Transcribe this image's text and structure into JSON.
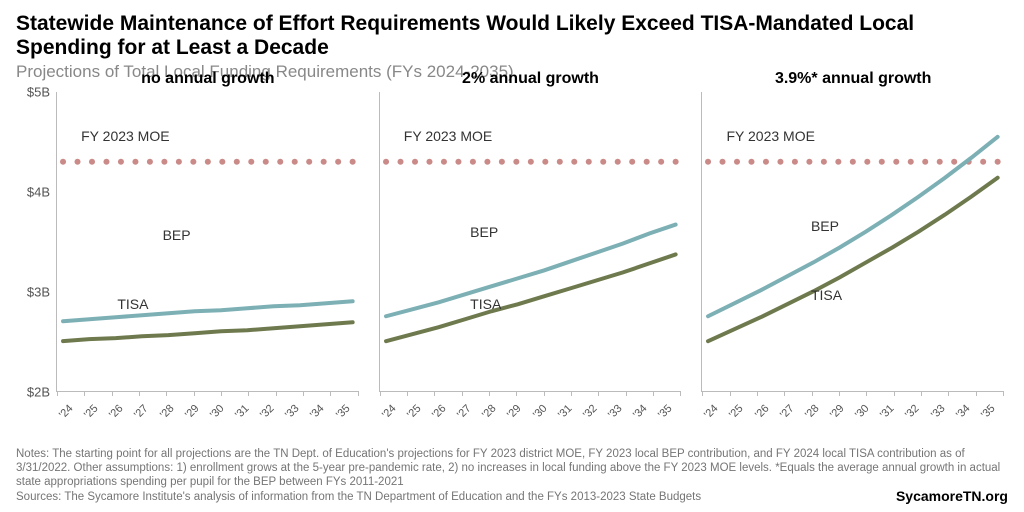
{
  "title": "Statewide Maintenance of Effort Requirements Would Likely Exceed TISA-Mandated Local Spending for at Least a Decade",
  "subtitle": "Projections of Total Local Funding Requirements (FYs 2024-2035)",
  "title_fontsize": 21,
  "subtitle_fontsize": 17,
  "y_axis": {
    "min": 2.0,
    "max": 5.0,
    "ticks": [
      2,
      3,
      4,
      5
    ],
    "tick_labels": [
      "$2B",
      "$3B",
      "$4B",
      "$5B"
    ]
  },
  "x_years": [
    "'24",
    "'25",
    "'26",
    "'27",
    "'28",
    "'29",
    "'30",
    "'31",
    "'32",
    "'33",
    "'34",
    "'35"
  ],
  "moe_value": 4.3,
  "moe_label": "FY 2023 MOE",
  "series_labels": {
    "bep": "BEP",
    "tisa": "TISA"
  },
  "colors": {
    "bep": "#7cb0b5",
    "tisa": "#6e7a4d",
    "moe": "#c98a88",
    "background": "#ffffff",
    "axis": "#bbbbbb",
    "text": "#000000",
    "muted": "#888888"
  },
  "line_width": 4,
  "moe_dot_radius": 3,
  "panel_title_fontsize": 16,
  "annotation_fontsize": 14,
  "panels": [
    {
      "title": "no annual growth",
      "bep": [
        2.7,
        2.72,
        2.74,
        2.76,
        2.78,
        2.8,
        2.81,
        2.83,
        2.85,
        2.86,
        2.88,
        2.9
      ],
      "tisa": [
        2.5,
        2.52,
        2.53,
        2.55,
        2.56,
        2.58,
        2.6,
        2.61,
        2.63,
        2.65,
        2.67,
        2.69
      ],
      "ann_positions": {
        "moe": [
          8,
          12
        ],
        "bep": [
          35,
          45
        ],
        "tisa": [
          20,
          68
        ]
      }
    },
    {
      "title": "2% annual growth",
      "bep": [
        2.75,
        2.82,
        2.89,
        2.97,
        3.05,
        3.13,
        3.21,
        3.3,
        3.39,
        3.48,
        3.58,
        3.67
      ],
      "tisa": [
        2.5,
        2.57,
        2.64,
        2.72,
        2.8,
        2.87,
        2.95,
        3.03,
        3.11,
        3.19,
        3.28,
        3.37
      ],
      "ann_positions": {
        "moe": [
          8,
          12
        ],
        "bep": [
          30,
          44
        ],
        "tisa": [
          30,
          68
        ]
      }
    },
    {
      "title": "3.9%* annual growth",
      "bep": [
        2.75,
        2.88,
        3.01,
        3.15,
        3.29,
        3.44,
        3.6,
        3.77,
        3.95,
        4.14,
        4.34,
        4.55
      ],
      "tisa": [
        2.5,
        2.62,
        2.74,
        2.87,
        3.0,
        3.14,
        3.29,
        3.44,
        3.6,
        3.77,
        3.95,
        4.14
      ],
      "ann_positions": {
        "moe": [
          8,
          12
        ],
        "bep": [
          36,
          42
        ],
        "tisa": [
          36,
          65
        ]
      }
    }
  ],
  "notes": "Notes: The starting point for all projections are the TN Dept. of Education's projections for FY 2023 district MOE, FY 2023 local BEP contribution, and FY 2024 local TISA contribution as of 3/31/2022. Other assumptions: 1) enrollment grows at the 5-year pre-pandemic rate, 2) no increases in local funding above the FY 2023 MOE levels. *Equals the average annual growth in actual state appropriations spending per pupil for the BEP between FYs 2011-2021",
  "source": "Sources: The Sycamore Institute's analysis of information from the TN Department of Education and the FYs 2013-2023 State Budgets",
  "brand": "SycamoreTN.org"
}
